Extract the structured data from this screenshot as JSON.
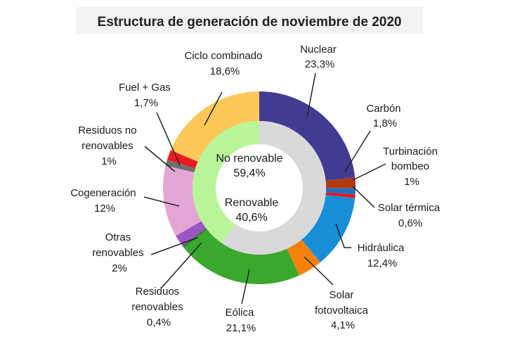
{
  "chart_data": {
    "type": "donut",
    "title": "Estructura de generación de noviembre de 2020",
    "inner": [
      {
        "name": "No renovable",
        "value": 59.4,
        "value_label": "59,4%",
        "color": "#d9d9d9"
      },
      {
        "name": "Renovable",
        "value": 40.6,
        "value_label": "40,6%",
        "color": "#b8f59a"
      }
    ],
    "outer": [
      {
        "name": "Nuclear",
        "value": 23.3,
        "value_label": "23,3%",
        "color": "#413c92"
      },
      {
        "name": "Carbón",
        "value": 1.8,
        "value_label": "1,8%",
        "color": "#b23a12"
      },
      {
        "name": "Turbinación bombeo",
        "value": 1.0,
        "value_label": "1%",
        "color": "#1e6fc1"
      },
      {
        "name": "Solar térmica",
        "value": 0.6,
        "value_label": "0,6%",
        "color": "#e8141c"
      },
      {
        "name": "Hidráulica",
        "value": 12.4,
        "value_label": "12,4%",
        "color": "#168fd8"
      },
      {
        "name": "Solar fotovoltaica",
        "value": 4.1,
        "value_label": "4,1%",
        "color": "#f5820d"
      },
      {
        "name": "Eólica",
        "value": 21.1,
        "value_label": "21,1%",
        "color": "#3aa82c"
      },
      {
        "name": "Residuos renovables",
        "value": 0.4,
        "value_label": "0,4%",
        "color": "#2f7a3a"
      },
      {
        "name": "Otras renovables",
        "value": 2.0,
        "value_label": "2%",
        "color": "#9a55c4"
      },
      {
        "name": "Cogeneración",
        "value": 12.0,
        "value_label": "12%",
        "color": "#e3a6d4"
      },
      {
        "name": "Residuos no renovables",
        "value": 1.0,
        "value_label": "1%",
        "color": "#6f6f6f"
      },
      {
        "name": "Fuel + Gas",
        "value": 1.7,
        "value_label": "1,7%",
        "color": "#e81c22"
      },
      {
        "name": "Ciclo combinado",
        "value": 18.6,
        "value_label": "18,6%",
        "color": "#fcc857"
      }
    ]
  },
  "labels": {
    "nuclear": [
      "Nuclear",
      "23,3%"
    ],
    "carbon": [
      "Carbón",
      "1,8%"
    ],
    "turbinacion": [
      "Turbinación",
      "bombeo",
      "1%"
    ],
    "solar_termica": [
      "Solar térmica",
      "0,6%"
    ],
    "hidraulica": [
      "Hidráulica",
      "12,4%"
    ],
    "solar_fv": [
      "Solar",
      "fotovoltaica",
      "4,1%"
    ],
    "eolica": [
      "Eólica",
      "21,1%"
    ],
    "residuos_ren": [
      "Residuos",
      "renovables",
      "0,4%"
    ],
    "otras_ren": [
      "Otras",
      "renovables",
      "2%"
    ],
    "cogeneracion": [
      "Cogeneración",
      "12%"
    ],
    "residuos_no_ren": [
      "Residuos no",
      "renovables",
      "1%"
    ],
    "fuel_gas": [
      "Fuel + Gas",
      "1,7%"
    ],
    "ciclo": [
      "Ciclo combinado",
      "18,6%"
    ]
  }
}
